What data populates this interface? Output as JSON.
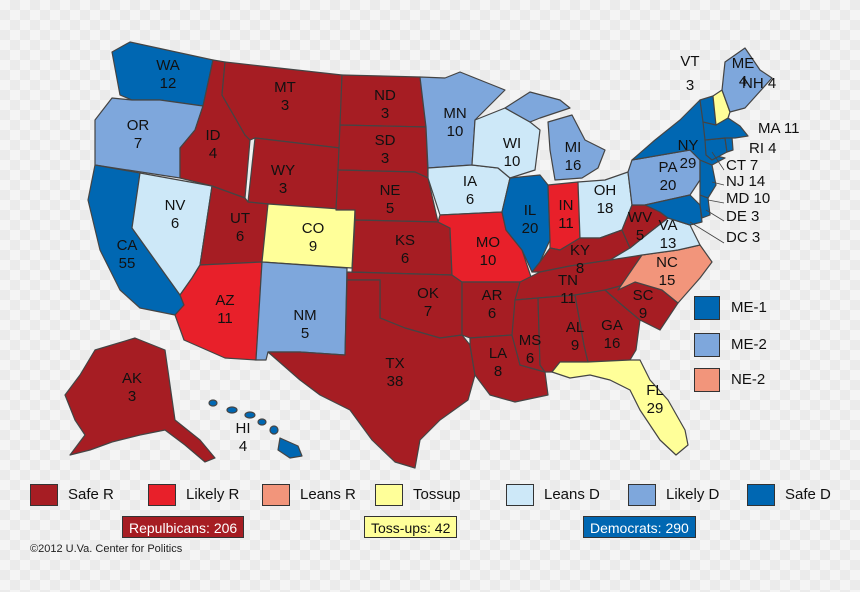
{
  "colors": {
    "safe_r": "#a61d23",
    "likely_r": "#e8202a",
    "leans_r": "#f2957b",
    "tossup": "#ffff99",
    "leans_d": "#cde8f8",
    "likely_d": "#7ea7dc",
    "safe_d": "#0067b2"
  },
  "states": [
    {
      "abbr": "WA",
      "ev": "12",
      "rating": "safe_d"
    },
    {
      "abbr": "OR",
      "ev": "7",
      "rating": "likely_d"
    },
    {
      "abbr": "CA",
      "ev": "55",
      "rating": "safe_d"
    },
    {
      "abbr": "NV",
      "ev": "6",
      "rating": "leans_d"
    },
    {
      "abbr": "ID",
      "ev": "4",
      "rating": "safe_r"
    },
    {
      "abbr": "MT",
      "ev": "3",
      "rating": "safe_r"
    },
    {
      "abbr": "WY",
      "ev": "3",
      "rating": "safe_r"
    },
    {
      "abbr": "UT",
      "ev": "6",
      "rating": "safe_r"
    },
    {
      "abbr": "AZ",
      "ev": "11",
      "rating": "likely_r"
    },
    {
      "abbr": "CO",
      "ev": "9",
      "rating": "tossup"
    },
    {
      "abbr": "NM",
      "ev": "5",
      "rating": "likely_d"
    },
    {
      "abbr": "ND",
      "ev": "3",
      "rating": "safe_r"
    },
    {
      "abbr": "SD",
      "ev": "3",
      "rating": "safe_r"
    },
    {
      "abbr": "NE",
      "ev": "5",
      "rating": "safe_r"
    },
    {
      "abbr": "KS",
      "ev": "6",
      "rating": "safe_r"
    },
    {
      "abbr": "OK",
      "ev": "7",
      "rating": "safe_r"
    },
    {
      "abbr": "TX",
      "ev": "38",
      "rating": "safe_r"
    },
    {
      "abbr": "MN",
      "ev": "10",
      "rating": "likely_d"
    },
    {
      "abbr": "IA",
      "ev": "6",
      "rating": "leans_d"
    },
    {
      "abbr": "MO",
      "ev": "10",
      "rating": "likely_r"
    },
    {
      "abbr": "AR",
      "ev": "6",
      "rating": "safe_r"
    },
    {
      "abbr": "LA",
      "ev": "8",
      "rating": "safe_r"
    },
    {
      "abbr": "WI",
      "ev": "10",
      "rating": "leans_d"
    },
    {
      "abbr": "IL",
      "ev": "20",
      "rating": "safe_d"
    },
    {
      "abbr": "MI",
      "ev": "16",
      "rating": "likely_d"
    },
    {
      "abbr": "IN",
      "ev": "11",
      "rating": "likely_r"
    },
    {
      "abbr": "OH",
      "ev": "18",
      "rating": "leans_d"
    },
    {
      "abbr": "KY",
      "ev": "8",
      "rating": "safe_r"
    },
    {
      "abbr": "TN",
      "ev": "11",
      "rating": "safe_r"
    },
    {
      "abbr": "MS",
      "ev": "6",
      "rating": "safe_r"
    },
    {
      "abbr": "AL",
      "ev": "9",
      "rating": "safe_r"
    },
    {
      "abbr": "GA",
      "ev": "16",
      "rating": "safe_r"
    },
    {
      "abbr": "FL",
      "ev": "29",
      "rating": "tossup"
    },
    {
      "abbr": "SC",
      "ev": "9",
      "rating": "safe_r"
    },
    {
      "abbr": "NC",
      "ev": "15",
      "rating": "leans_r"
    },
    {
      "abbr": "VA",
      "ev": "13",
      "rating": "leans_d"
    },
    {
      "abbr": "WV",
      "ev": "5",
      "rating": "safe_r"
    },
    {
      "abbr": "PA",
      "ev": "20",
      "rating": "likely_d"
    },
    {
      "abbr": "NY",
      "ev": "29",
      "rating": "safe_d"
    },
    {
      "abbr": "ME",
      "ev": "4",
      "rating": "likely_d"
    },
    {
      "abbr": "VT",
      "ev": "3",
      "rating": "safe_d"
    },
    {
      "abbr": "NH",
      "ev": "4",
      "rating": "tossup"
    },
    {
      "abbr": "MA",
      "ev": "11",
      "rating": "safe_d"
    },
    {
      "abbr": "RI",
      "ev": "4",
      "rating": "safe_d"
    },
    {
      "abbr": "CT",
      "ev": "7",
      "rating": "safe_d"
    },
    {
      "abbr": "NJ",
      "ev": "14",
      "rating": "safe_d"
    },
    {
      "abbr": "MD",
      "ev": "10",
      "rating": "safe_d"
    },
    {
      "abbr": "DE",
      "ev": "3",
      "rating": "safe_d"
    },
    {
      "abbr": "DC",
      "ev": "3",
      "rating": "safe_d"
    },
    {
      "abbr": "AK",
      "ev": "3",
      "rating": "safe_r"
    },
    {
      "abbr": "HI",
      "ev": "4",
      "rating": "safe_d"
    }
  ],
  "districts": [
    {
      "label": "ME-1",
      "rating": "safe_d"
    },
    {
      "label": "ME-2",
      "rating": "likely_d"
    },
    {
      "label": "NE-2",
      "rating": "leans_r"
    }
  ],
  "legend": [
    {
      "label": "Safe R",
      "rating": "safe_r"
    },
    {
      "label": "Likely R",
      "rating": "likely_r"
    },
    {
      "label": "Leans R",
      "rating": "leans_r"
    },
    {
      "label": "Tossup",
      "rating": "tossup"
    },
    {
      "label": "Leans D",
      "rating": "leans_d"
    },
    {
      "label": "Likely D",
      "rating": "likely_d"
    },
    {
      "label": "Safe D",
      "rating": "safe_d"
    }
  ],
  "totals": {
    "republicans": "Repulbicans: 206",
    "tossups": "Toss-ups: 42",
    "democrats": "Democrats: 290"
  },
  "credit": "©2012 U.Va. Center for Politics"
}
